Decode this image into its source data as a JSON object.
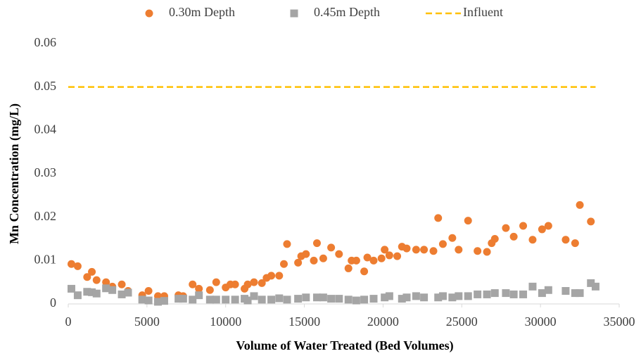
{
  "chart_data": {
    "type": "scatter",
    "xlabel": "Volume of Water Treated (Bed Volumes)",
    "ylabel": "Mn Concentration (mg/L)",
    "xlim": [
      0,
      35000
    ],
    "xticks": [
      0,
      5000,
      10000,
      15000,
      20000,
      25000,
      30000,
      35000
    ],
    "ylim": [
      0,
      0.06
    ],
    "yticks": [
      0,
      0.01,
      0.02,
      0.03,
      0.04,
      0.05,
      0.06
    ],
    "grid": false,
    "legend": "top",
    "series": [
      {
        "name": "0.30m Depth",
        "color": "#ED7D31",
        "marker": "circle",
        "x": [
          200,
          600,
          1200,
          1500,
          1800,
          2400,
          2800,
          3400,
          3800,
          4700,
          5100,
          5700,
          6100,
          7000,
          7300,
          7900,
          8300,
          9000,
          9400,
          10000,
          10300,
          10600,
          11200,
          11400,
          11800,
          12300,
          12600,
          12900,
          13400,
          13700,
          13900,
          14600,
          14800,
          15100,
          15600,
          15800,
          16200,
          16700,
          17200,
          17800,
          18000,
          18300,
          18800,
          19000,
          19400,
          19900,
          20100,
          20400,
          20900,
          21200,
          21500,
          22100,
          22600,
          23200,
          23500,
          23800,
          24400,
          24800,
          25400,
          26000,
          26600,
          26900,
          27100,
          27800,
          28300,
          28900,
          29500,
          30100,
          30500,
          31600,
          32200,
          32500,
          33200
        ],
        "values": [
          0.0092,
          0.0087,
          0.0062,
          0.0074,
          0.0055,
          0.005,
          0.004,
          0.0045,
          0.003,
          0.002,
          0.003,
          0.0018,
          0.0018,
          0.002,
          0.0018,
          0.0045,
          0.0035,
          0.0032,
          0.005,
          0.0038,
          0.0045,
          0.0045,
          0.0035,
          0.0045,
          0.005,
          0.0048,
          0.006,
          0.0065,
          0.0065,
          0.0092,
          0.0138,
          0.0095,
          0.011,
          0.0115,
          0.01,
          0.014,
          0.0105,
          0.013,
          0.0115,
          0.0082,
          0.01,
          0.01,
          0.0075,
          0.0107,
          0.01,
          0.0105,
          0.0125,
          0.0112,
          0.011,
          0.0132,
          0.0128,
          0.0125,
          0.0125,
          0.0122,
          0.0198,
          0.0138,
          0.0152,
          0.0125,
          0.0192,
          0.0122,
          0.012,
          0.014,
          0.015,
          0.0175,
          0.0155,
          0.018,
          0.0148,
          0.0172,
          0.018,
          0.0148,
          0.014,
          0.0228,
          0.019
        ]
      },
      {
        "name": "0.45m Depth",
        "color": "#A5A5A5",
        "marker": "square",
        "x": [
          200,
          600,
          1200,
          1500,
          1800,
          2400,
          2800,
          3400,
          3800,
          4700,
          5100,
          5700,
          6100,
          7000,
          7300,
          7900,
          8300,
          9000,
          9400,
          10000,
          10600,
          11200,
          11400,
          11800,
          12300,
          12900,
          13400,
          13900,
          14600,
          15100,
          15800,
          16200,
          16700,
          17200,
          17800,
          18300,
          18800,
          19400,
          20100,
          20400,
          21200,
          21500,
          22100,
          22600,
          23500,
          23800,
          24400,
          24800,
          25400,
          26000,
          26600,
          27100,
          27800,
          28300,
          28900,
          29500,
          30100,
          30500,
          31600,
          32200,
          32500,
          33200,
          33500
        ],
        "values": [
          0.0035,
          0.002,
          0.0028,
          0.0027,
          0.0024,
          0.0036,
          0.0032,
          0.0022,
          0.0026,
          0.001,
          0.0008,
          0.0005,
          0.0007,
          0.0012,
          0.0012,
          0.001,
          0.002,
          0.001,
          0.001,
          0.001,
          0.001,
          0.0012,
          0.0008,
          0.0018,
          0.001,
          0.001,
          0.0013,
          0.001,
          0.0012,
          0.0015,
          0.0015,
          0.0015,
          0.0012,
          0.0012,
          0.001,
          0.0008,
          0.001,
          0.0012,
          0.0015,
          0.0018,
          0.0012,
          0.0015,
          0.0018,
          0.0015,
          0.0015,
          0.0018,
          0.0015,
          0.0018,
          0.0018,
          0.0022,
          0.0022,
          0.0025,
          0.0025,
          0.0022,
          0.0022,
          0.004,
          0.0025,
          0.0032,
          0.003,
          0.0025,
          0.0025,
          0.0048,
          0.004
        ]
      },
      {
        "name": "Influent",
        "color": "#FFC000",
        "marker": "line",
        "line_style": "dashed",
        "x": [
          0,
          33500
        ],
        "values": [
          0.05,
          0.05
        ]
      }
    ]
  }
}
